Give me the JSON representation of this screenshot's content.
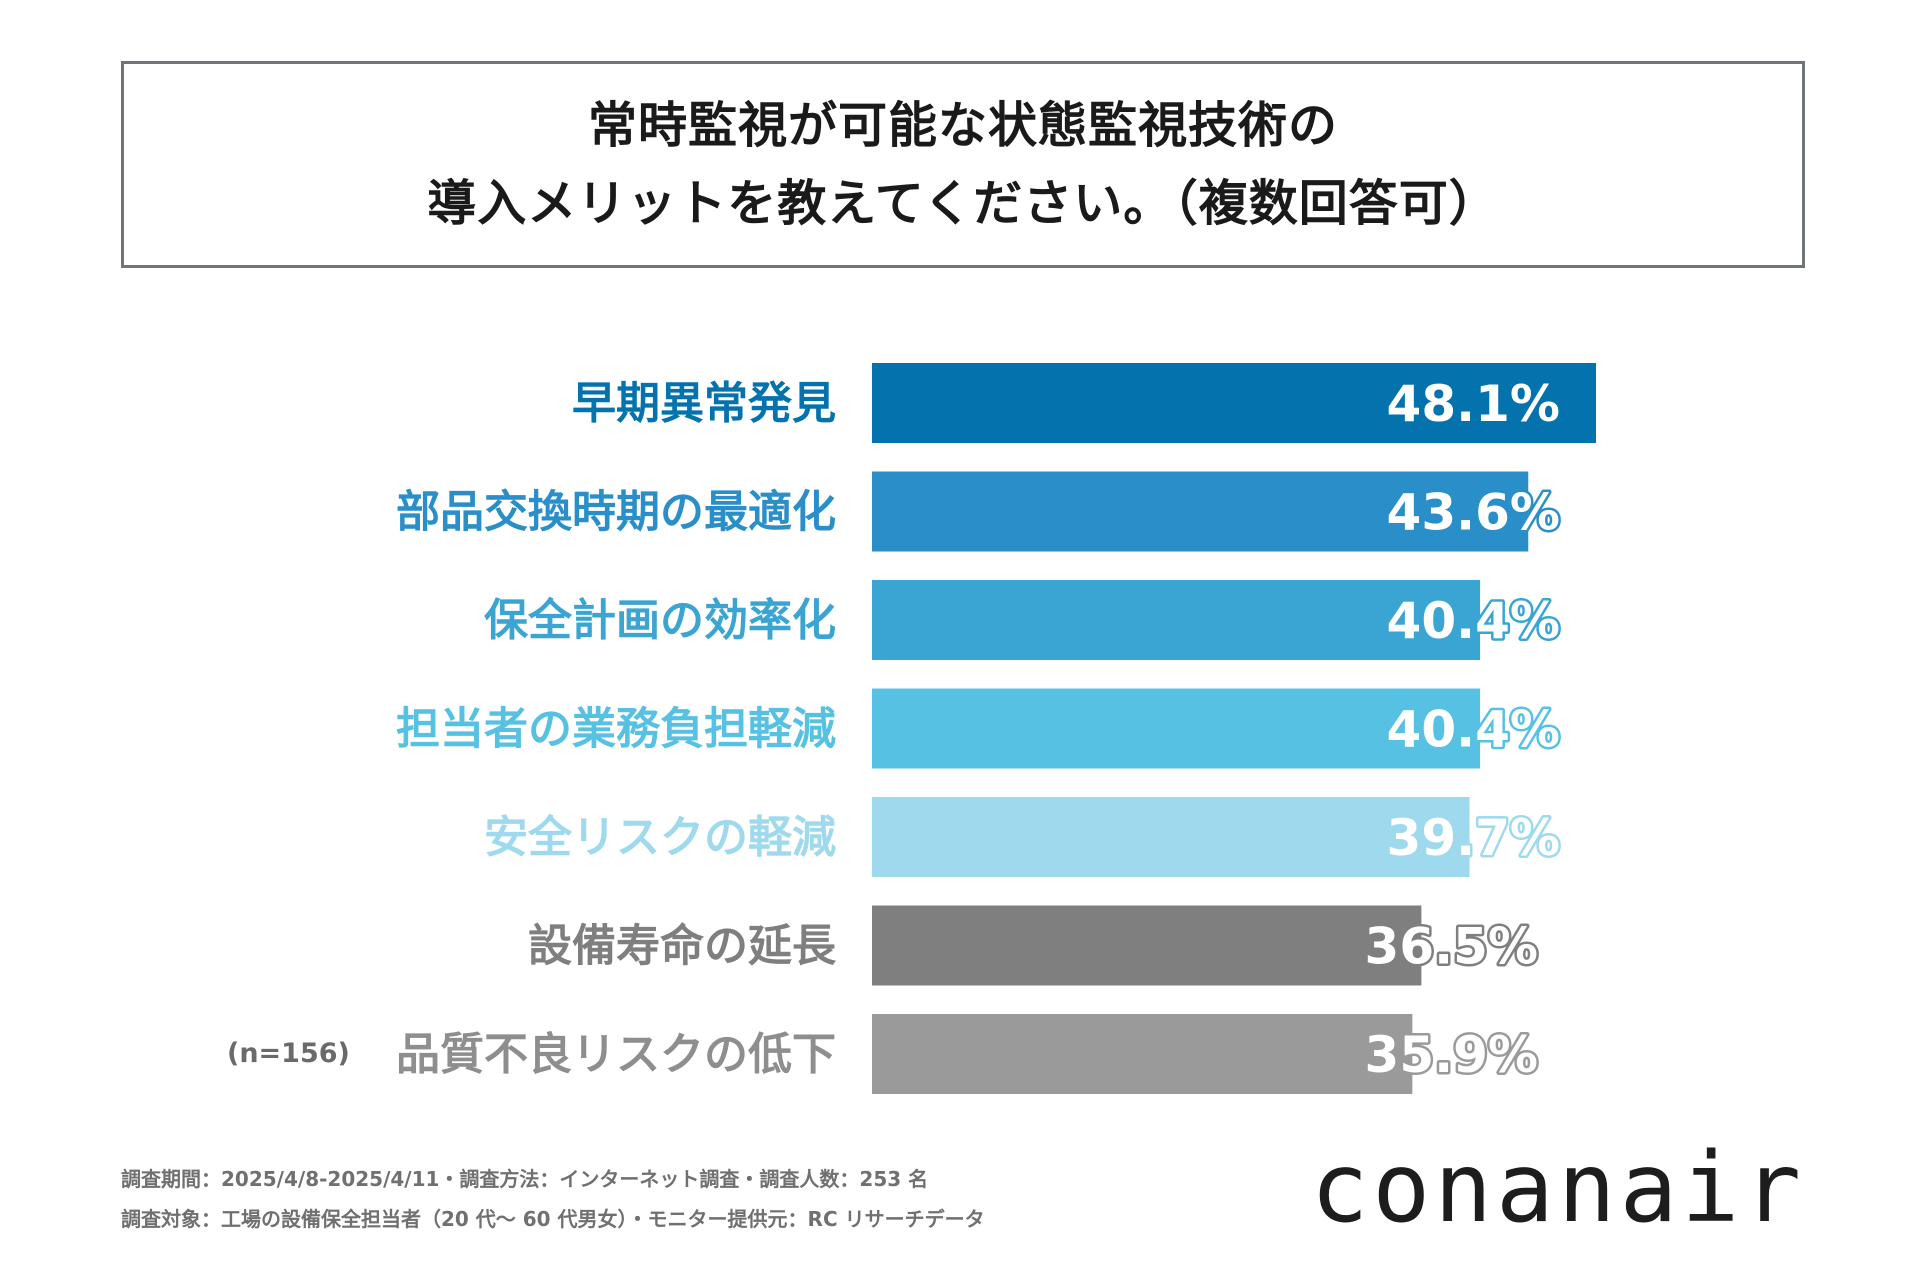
{
  "title": {
    "line1": "常時監視が可能な状態監視技術の",
    "line2": "導入メリットを教えてください。（複数回答可）"
  },
  "chart_data": {
    "type": "bar",
    "orientation": "horizontal",
    "title": "常時監視が可能な状態監視技術の導入メリットを教えてください。（複数回答可）",
    "xlabel": "",
    "ylabel": "",
    "xlim": [
      0,
      48.1
    ],
    "grid": false,
    "categories": [
      "早期異常発見",
      "部品交換時期の最適化",
      "保全計画の効率化",
      "担当者の業務負担軽減",
      "安全リスクの軽減",
      "設備寿命の延長",
      "品質不良リスクの低下"
    ],
    "values": [
      48.1,
      43.6,
      40.4,
      40.4,
      39.7,
      36.5,
      35.9
    ],
    "value_labels": [
      "48.1%",
      "43.6%",
      "40.4%",
      "40.4%",
      "39.7%",
      "36.5%",
      "35.9%"
    ],
    "bar_colors": [
      "#0473ad",
      "#2a8fc8",
      "#3aa4d2",
      "#56c1e3",
      "#9ed9ed",
      "#7f7f7f",
      "#9a9a9a"
    ],
    "label_colors": [
      "#0473ad",
      "#2a8fc8",
      "#3aa4d2",
      "#56c1e3",
      "#9ed9ed",
      "#7f7f7f",
      "#8e8e8e"
    ]
  },
  "sample_size": "(n=156)",
  "footer": {
    "line1": "調査期間：2025/4/8-2025/4/11・調査方法：インターネット調査・調査人数：253 名",
    "line2": "調査対象：工場の設備保全担当者（20 代～ 60 代男女）・モニター提供元：RC リサーチデータ"
  },
  "logo": "conanair"
}
